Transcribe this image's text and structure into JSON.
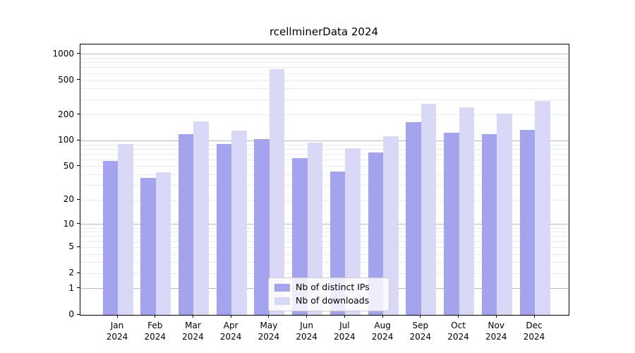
{
  "title": "rcellminerData 2024",
  "chart_data": {
    "type": "bar",
    "title": "rcellminerData 2024",
    "categories": [
      "Jan 2024",
      "Feb 2024",
      "Mar 2024",
      "Apr 2024",
      "May 2024",
      "Jun 2024",
      "Jul 2024",
      "Aug 2024",
      "Sep 2024",
      "Oct 2024",
      "Nov 2024",
      "Dec 2024"
    ],
    "series": [
      {
        "name": "Nb of distinct IPs",
        "color": "#a3a3ee",
        "values": [
          58,
          37,
          120,
          92,
          105,
          63,
          44,
          73,
          165,
          125,
          120,
          135
        ]
      },
      {
        "name": "Nb of downloads",
        "color": "#d9d9f7",
        "values": [
          92,
          43,
          168,
          132,
          670,
          96,
          82,
          112,
          270,
          245,
          207,
          290
        ]
      }
    ],
    "xlabel": "",
    "ylabel": "",
    "yscale": "log10(1+x)",
    "ylim": [
      0,
      1300
    ],
    "yticks": [
      0,
      1,
      2,
      5,
      10,
      20,
      50,
      100,
      200,
      500,
      1000
    ],
    "grid": "horizontal",
    "grid_major_at": [
      1,
      10,
      100,
      1000
    ],
    "grid_minor_at": [
      2,
      3,
      4,
      5,
      6,
      7,
      8,
      9,
      20,
      30,
      40,
      50,
      60,
      70,
      80,
      90,
      200,
      300,
      400,
      500,
      600,
      700,
      800,
      900
    ],
    "legend_position": "inside-bottom-center"
  },
  "colors": {
    "ips_bar": "#a3a3ee",
    "downloads_bar": "#d9d9f7",
    "grid_major": "#b9b9b9",
    "grid_minor": "#ebebeb",
    "spine": "#000000"
  }
}
